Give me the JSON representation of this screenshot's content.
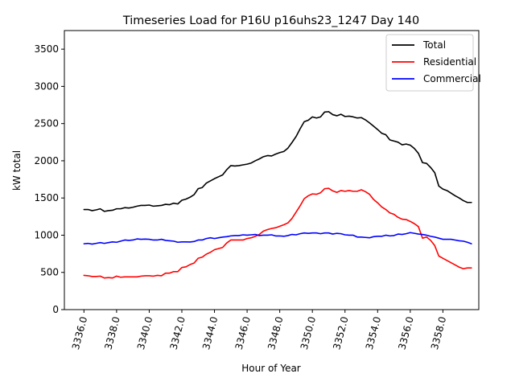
{
  "chart_data": {
    "type": "line",
    "title": "Timeseries Load for P16U p16uhs23_1247  Day 140",
    "xlabel": "Hour of Year",
    "ylabel": "kW total",
    "xlim": [
      3334.8,
      3360.2
    ],
    "ylim": [
      0,
      3750
    ],
    "xticks": [
      3336,
      3338,
      3340,
      3342,
      3344,
      3346,
      3348,
      3350,
      3352,
      3354,
      3356,
      3358
    ],
    "xtick_labels": [
      "3336.0",
      "3338.0",
      "3340.0",
      "3342.0",
      "3344.0",
      "3346.0",
      "3348.0",
      "3350.0",
      "3352.0",
      "3354.0",
      "3356.0",
      "3358.0"
    ],
    "yticks": [
      0,
      500,
      1000,
      1500,
      2000,
      2500,
      3000,
      3500
    ],
    "ytick_labels": [
      "0",
      "500",
      "1000",
      "1500",
      "2000",
      "2500",
      "3000",
      "3500"
    ],
    "grid": false,
    "legend_position": "top-right",
    "x": [
      3336.0,
      3336.25,
      3336.5,
      3336.75,
      3337.0,
      3337.25,
      3337.5,
      3337.75,
      3338.0,
      3338.25,
      3338.5,
      3338.75,
      3339.0,
      3339.25,
      3339.5,
      3339.75,
      3340.0,
      3340.25,
      3340.5,
      3340.75,
      3341.0,
      3341.25,
      3341.5,
      3341.75,
      3342.0,
      3342.25,
      3342.5,
      3342.75,
      3343.0,
      3343.25,
      3343.5,
      3343.75,
      3344.0,
      3344.25,
      3344.5,
      3344.75,
      3345.0,
      3345.25,
      3345.5,
      3345.75,
      3346.0,
      3346.25,
      3346.5,
      3346.75,
      3347.0,
      3347.25,
      3347.5,
      3347.75,
      3348.0,
      3348.25,
      3348.5,
      3348.75,
      3349.0,
      3349.25,
      3349.5,
      3349.75,
      3350.0,
      3350.25,
      3350.5,
      3350.75,
      3351.0,
      3351.25,
      3351.5,
      3351.75,
      3352.0,
      3352.25,
      3352.5,
      3352.75,
      3353.0,
      3353.25,
      3353.5,
      3353.75,
      3354.0,
      3354.25,
      3354.5,
      3354.75,
      3355.0,
      3355.25,
      3355.5,
      3355.75,
      3356.0,
      3356.25,
      3356.5,
      3356.75,
      3357.0,
      3357.25,
      3357.5,
      3357.75,
      3358.0,
      3358.25,
      3358.5,
      3358.75,
      3359.0,
      3359.25,
      3359.5,
      3359.75
    ],
    "series": [
      {
        "name": "Total",
        "color": "#000000",
        "values": [
          1345,
          1345,
          1330,
          1340,
          1355,
          1320,
          1330,
          1335,
          1355,
          1355,
          1370,
          1365,
          1375,
          1390,
          1400,
          1400,
          1405,
          1390,
          1395,
          1400,
          1415,
          1410,
          1430,
          1420,
          1470,
          1485,
          1510,
          1545,
          1625,
          1640,
          1700,
          1730,
          1760,
          1785,
          1810,
          1880,
          1935,
          1930,
          1935,
          1945,
          1955,
          1970,
          2000,
          2025,
          2055,
          2070,
          2065,
          2090,
          2110,
          2125,
          2170,
          2245,
          2325,
          2430,
          2525,
          2545,
          2590,
          2575,
          2590,
          2655,
          2660,
          2620,
          2605,
          2625,
          2595,
          2600,
          2590,
          2575,
          2580,
          2550,
          2510,
          2465,
          2420,
          2370,
          2350,
          2280,
          2265,
          2250,
          2215,
          2225,
          2210,
          2165,
          2100,
          1975,
          1965,
          1910,
          1840,
          1660,
          1620,
          1600,
          1565,
          1530,
          1500,
          1465,
          1440,
          1440
        ]
      },
      {
        "name": "Residential",
        "color": "#ff0000",
        "values": [
          460,
          455,
          445,
          445,
          450,
          425,
          430,
          425,
          450,
          435,
          440,
          440,
          440,
          440,
          450,
          455,
          455,
          450,
          460,
          455,
          490,
          490,
          510,
          510,
          565,
          575,
          605,
          625,
          690,
          705,
          745,
          770,
          805,
          820,
          835,
          895,
          935,
          935,
          935,
          935,
          955,
          965,
          985,
          1010,
          1055,
          1075,
          1090,
          1100,
          1120,
          1140,
          1165,
          1225,
          1310,
          1395,
          1490,
          1530,
          1555,
          1550,
          1570,
          1625,
          1630,
          1595,
          1575,
          1600,
          1590,
          1600,
          1590,
          1590,
          1610,
          1585,
          1550,
          1480,
          1435,
          1380,
          1345,
          1300,
          1280,
          1240,
          1215,
          1210,
          1185,
          1155,
          1115,
          960,
          975,
          930,
          860,
          720,
          690,
          660,
          630,
          600,
          570,
          550,
          560,
          560
        ]
      },
      {
        "name": "Commercial",
        "color": "#0000ff",
        "values": [
          885,
          890,
          880,
          890,
          900,
          890,
          900,
          910,
          905,
          920,
          935,
          930,
          935,
          950,
          945,
          948,
          945,
          935,
          935,
          945,
          930,
          925,
          920,
          905,
          910,
          910,
          908,
          915,
          935,
          935,
          955,
          965,
          955,
          965,
          975,
          980,
          990,
          995,
          995,
          1005,
          1000,
          1005,
          1010,
          995,
          1000,
          1000,
          1005,
          990,
          990,
          985,
          995,
          1010,
          1005,
          1020,
          1030,
          1025,
          1030,
          1030,
          1020,
          1030,
          1030,
          1015,
          1025,
          1020,
          1005,
          1000,
          1000,
          975,
          975,
          970,
          965,
          980,
          985,
          985,
          1000,
          990,
          995,
          1015,
          1010,
          1020,
          1035,
          1025,
          1015,
          1010,
          1000,
          985,
          975,
          960,
          945,
          945,
          945,
          935,
          925,
          920,
          905,
          885
        ]
      }
    ]
  }
}
